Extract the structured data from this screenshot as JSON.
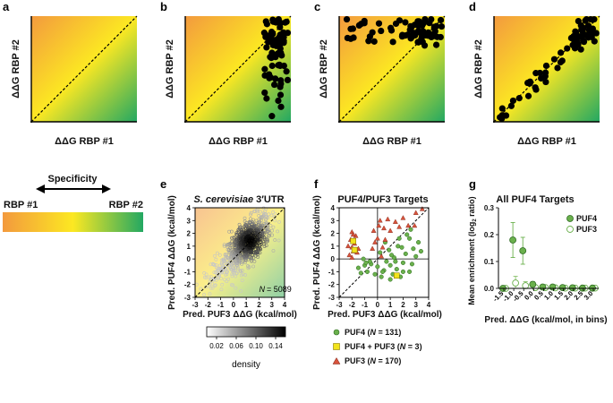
{
  "panel_letters": [
    "a",
    "b",
    "c",
    "d",
    "e",
    "f",
    "g"
  ],
  "schematic": {
    "xlabel": "ΔΔG RBP #1",
    "ylabel": "ΔΔG RBP #2",
    "specificity_title": "Specificity",
    "left_label": "RBP #1",
    "right_label": "RBP #2"
  },
  "colors": {
    "orange": "#f5a23c",
    "yellow": "#fce61e",
    "green": "#2bab60",
    "puf4": "#6ab04c",
    "puf3": "#d8533c",
    "both": "#f2e31c"
  },
  "chart_data": [
    {
      "id": "e",
      "type": "scatter",
      "title_italic": "S. cerevisiae",
      "title_rest": " 3′UTR",
      "xlabel": "Pred. PUF3 ΔΔG (kcal/mol)",
      "ylabel": "Pred. PUF4 ΔΔG (kcal/mol)",
      "xlim": [
        -3,
        4
      ],
      "ylim": [
        -3,
        4
      ],
      "xticks": [
        "-3",
        "-2",
        "-1",
        "0",
        "1",
        "2",
        "3",
        "4"
      ],
      "yticks": [
        "-3",
        "-2",
        "-1",
        "0",
        "1",
        "2",
        "3",
        "4"
      ],
      "n_label": "N",
      "n_value": "= 5089",
      "colorbar": {
        "label": "density",
        "ticks": [
          "0.02",
          "0.06",
          "0.10",
          "0.14"
        ],
        "range": [
          0,
          0.16
        ]
      }
    },
    {
      "id": "f",
      "type": "scatter",
      "title": "PUF4/PUF3 Targets",
      "xlabel": "Pred. PUF3 ΔΔG (kcal/mol)",
      "ylabel": "Pred. PUF4 ΔΔG (kcal/mol)",
      "xlim": [
        -3,
        4
      ],
      "ylim": [
        -3,
        4
      ],
      "xticks": [
        "-3",
        "-2",
        "-1",
        "0",
        "1",
        "2",
        "3",
        "4"
      ],
      "yticks": [
        "-3",
        "-2",
        "-1",
        "0",
        "1",
        "2",
        "3",
        "4"
      ],
      "legend": [
        {
          "name": "PUF4",
          "n": "131"
        },
        {
          "name": "PUF4 + PUF3",
          "n": "3"
        },
        {
          "name": "PUF3",
          "n": "170"
        }
      ],
      "series_puf3": [
        [
          -2.0,
          0.9
        ],
        [
          -2.1,
          1.5
        ],
        [
          -1.9,
          0.6
        ],
        [
          -1.8,
          1.2
        ],
        [
          -2.2,
          0.3
        ],
        [
          -1.7,
          1.8
        ],
        [
          -2.0,
          2.1
        ],
        [
          -1.6,
          0.5
        ],
        [
          -2.3,
          1.0
        ],
        [
          -1.9,
          1.9
        ],
        [
          -0.3,
          2.2
        ],
        [
          0.2,
          3.0
        ],
        [
          0.5,
          2.4
        ],
        [
          0.8,
          3.1
        ],
        [
          1.4,
          2.9
        ],
        [
          2.0,
          3.2
        ],
        [
          2.4,
          2.6
        ],
        [
          3.0,
          3.6
        ],
        [
          3.5,
          3.9
        ],
        [
          0.0,
          1.6
        ],
        [
          -0.4,
          0.8
        ],
        [
          0.4,
          0.9
        ],
        [
          -0.2,
          1.3
        ],
        [
          0.6,
          1.5
        ],
        [
          1.0,
          2.2
        ],
        [
          2.9,
          2.6
        ],
        [
          1.7,
          2.5
        ],
        [
          0.1,
          2.6
        ],
        [
          -1.5,
          0.8
        ],
        [
          -2.0,
          0.1
        ],
        [
          0.3,
          0.2
        ]
      ],
      "series_puf4": [
        [
          -1.5,
          -0.7
        ],
        [
          -1.0,
          -0.5
        ],
        [
          -0.5,
          -0.4
        ],
        [
          0.0,
          -0.6
        ],
        [
          0.5,
          -0.9
        ],
        [
          1.0,
          -0.5
        ],
        [
          1.5,
          -0.8
        ],
        [
          2.0,
          -0.3
        ],
        [
          2.5,
          -1.0
        ],
        [
          0.3,
          -1.4
        ],
        [
          -0.8,
          -1.0
        ],
        [
          -1.3,
          -1.1
        ],
        [
          1.2,
          -1.2
        ],
        [
          1.8,
          -1.4
        ],
        [
          0.7,
          -0.2
        ],
        [
          1.3,
          0.1
        ],
        [
          2.2,
          0.4
        ],
        [
          2.8,
          0.8
        ],
        [
          3.2,
          1.3
        ],
        [
          2.5,
          1.6
        ],
        [
          1.6,
          1.0
        ],
        [
          0.9,
          0.7
        ],
        [
          -0.6,
          -0.2
        ],
        [
          -1.1,
          0.0
        ],
        [
          0.2,
          0.5
        ],
        [
          0.4,
          -1.0
        ],
        [
          1.0,
          -1.6
        ],
        [
          2.0,
          -1.0
        ],
        [
          3.0,
          0.2
        ],
        [
          2.6,
          2.3
        ],
        [
          1.1,
          0.3
        ],
        [
          0.6,
          1.3
        ],
        [
          1.7,
          1.6
        ],
        [
          2.3,
          1.9
        ],
        [
          -0.2,
          -1.2
        ],
        [
          -0.9,
          -0.3
        ],
        [
          1.4,
          -0.2
        ],
        [
          2.7,
          -0.4
        ],
        [
          3.4,
          0.6
        ],
        [
          1.9,
          0.9
        ]
      ],
      "series_both": [
        [
          -1.9,
          1.4
        ],
        [
          -1.8,
          0.7
        ],
        [
          1.5,
          -1.3
        ]
      ]
    },
    {
      "id": "g",
      "type": "scatter",
      "title": "All PUF4 Targets",
      "xlabel": "Pred. ΔΔG (kcal/mol, in bins)",
      "ylabel_main": "Mean enrichment (log",
      "ylabel_sub": "2",
      "ylabel_end": " ratio)",
      "xlim": [
        0,
        9
      ],
      "ylim": [
        0,
        0.3
      ],
      "xticks": [
        "-1.5",
        "-1.0",
        "-0.5",
        "0.0",
        "0.5",
        "1.0",
        "1.5",
        "2.0",
        "2.5",
        "3.0"
      ],
      "yticks": [
        "0.0",
        "0.1",
        "0.2",
        "0.3"
      ],
      "legend": [
        "PUF4",
        "PUF3"
      ],
      "puf4": [
        0.0,
        0.18,
        0.14,
        0.015,
        0.005,
        0.005,
        0.003,
        0.002,
        0.001,
        0.001
      ],
      "puf4_err": [
        0.0,
        0.065,
        0.05,
        0.01,
        0.005,
        0.004,
        0.003,
        0.002,
        0.002,
        0.002
      ],
      "puf3": [
        0.0,
        0.02,
        0.01,
        0.003,
        0.003,
        0.002,
        0.001,
        0.001,
        0.001,
        0.001
      ],
      "puf3_err": [
        0.0,
        0.025,
        0.015,
        0.005,
        0.004,
        0.003,
        0.002,
        0.002,
        0.002,
        0.002
      ]
    }
  ]
}
